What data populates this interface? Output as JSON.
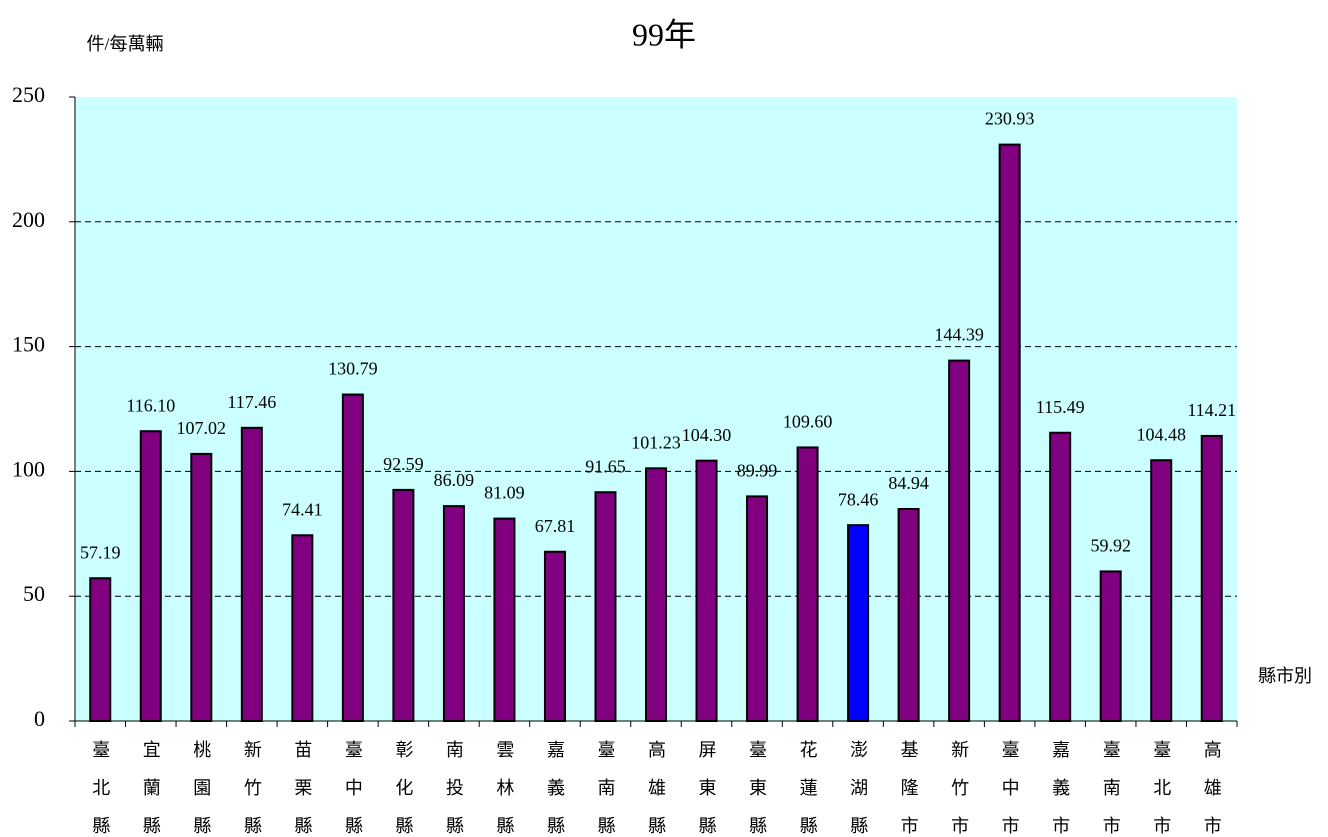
{
  "chart_data": {
    "type": "bar",
    "title": "99年",
    "y_label": "件/每萬輛",
    "x_label": "縣市別",
    "categories": [
      "臺北縣",
      "宜蘭縣",
      "桃園縣",
      "新竹縣",
      "苗栗縣",
      "臺中縣",
      "彰化縣",
      "南投縣",
      "雲林縣",
      "嘉義縣",
      "臺南縣",
      "高雄縣",
      "屏東縣",
      "臺東縣",
      "花蓮縣",
      "澎湖縣",
      "基隆市",
      "新竹市",
      "臺中市",
      "嘉義市",
      "臺南市",
      "臺北市",
      "高雄市"
    ],
    "values": [
      57.19,
      116.1,
      107.02,
      117.46,
      74.41,
      130.79,
      92.59,
      86.09,
      81.09,
      67.81,
      91.65,
      101.23,
      104.3,
      89.99,
      109.6,
      78.46,
      84.94,
      144.39,
      230.93,
      115.49,
      59.92,
      104.48,
      114.21
    ],
    "value_labels": [
      "57.19",
      "116.10",
      "107.02",
      "117.46",
      "74.41",
      "130.79",
      "92.59",
      "86.09",
      "81.09",
      "67.81",
      "91.65",
      "101.23",
      "104.30",
      "89.99",
      "109.60",
      "78.46",
      "84.94",
      "144.39",
      "230.93",
      "115.49",
      "59.92",
      "104.48",
      "114.21"
    ],
    "colors": [
      "#800080",
      "#800080",
      "#800080",
      "#800080",
      "#800080",
      "#800080",
      "#800080",
      "#800080",
      "#800080",
      "#800080",
      "#800080",
      "#800080",
      "#800080",
      "#800080",
      "#800080",
      "#0000ff",
      "#800080",
      "#800080",
      "#800080",
      "#800080",
      "#800080",
      "#800080",
      "#800080"
    ],
    "ylim": [
      0,
      250
    ],
    "yticks": [
      0,
      50,
      100,
      150,
      200,
      250
    ],
    "grid": true,
    "background": "#ccffff"
  }
}
